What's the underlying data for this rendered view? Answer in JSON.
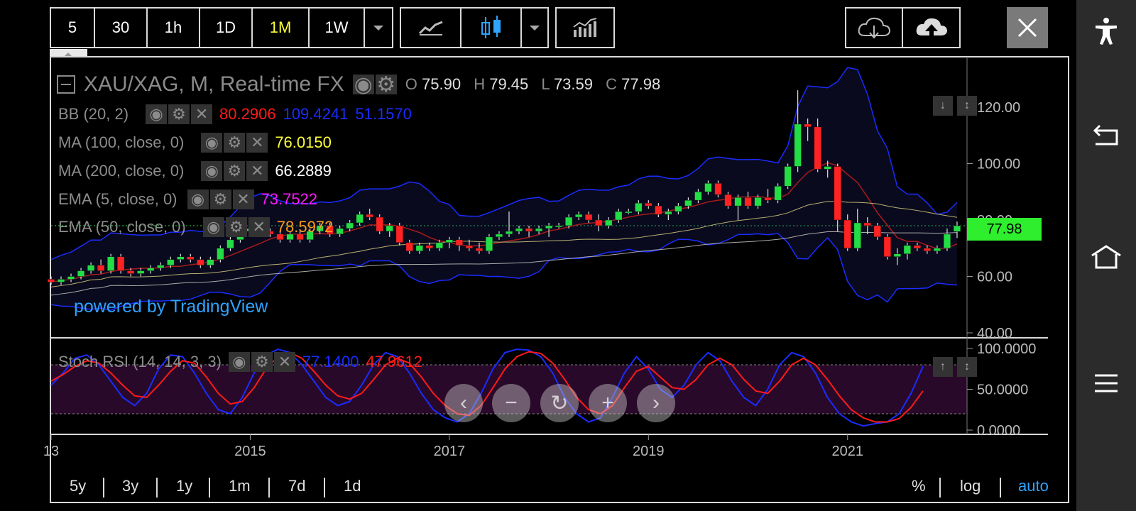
{
  "toolbar": {
    "intervals": [
      "5",
      "30",
      "1h",
      "1D",
      "1M",
      "1W"
    ],
    "active_interval": "1M"
  },
  "chart_header": {
    "title": "XAU/XAG, M, Real-time FX",
    "ohlc": {
      "o_label": "O",
      "o": "75.90",
      "h_label": "H",
      "h": "79.45",
      "l_label": "L",
      "l": "73.59",
      "c_label": "C",
      "c": "77.98"
    }
  },
  "indicators": [
    {
      "label": "BB (20, 2)",
      "values": [
        "80.2906",
        "109.4241",
        "51.1570"
      ],
      "colors": [
        "#ff1a1a",
        "#1a2cff",
        "#1a2cff"
      ]
    },
    {
      "label": "MA (100, close, 0)",
      "values": [
        "76.0150"
      ],
      "colors": [
        "#ffff3a"
      ]
    },
    {
      "label": "MA (200, close, 0)",
      "values": [
        "66.2889"
      ],
      "colors": [
        "#ffffff"
      ]
    },
    {
      "label": "EMA (5, close, 0)",
      "values": [
        "73.7522"
      ],
      "colors": [
        "#ff1aff"
      ]
    },
    {
      "label": "EMA (50, close, 0)",
      "values": [
        "78.5972"
      ],
      "colors": [
        "#ff9d1a"
      ]
    }
  ],
  "stoch": {
    "label": "Stoch RSI (14, 14, 3, 3)",
    "k": "77.1400",
    "d": "47.9612",
    "k_color": "#1a2cff",
    "d_color": "#ff1a1a"
  },
  "watermark": "powered by TradingView",
  "price_tag": "77.98",
  "range_buttons": [
    "5y",
    "3y",
    "1y",
    "1m",
    "7d",
    "1d"
  ],
  "scale_buttons": {
    "percent": "%",
    "log": "log",
    "auto": "auto"
  },
  "colors": {
    "up": "#22dd44",
    "down": "#ff2222",
    "accent": "#2ea3ff",
    "active": "#ffff3a"
  },
  "chart_data": {
    "type": "candlestick",
    "y_axis_ticks": [
      "120.00",
      "100.00",
      "80.00",
      "60.00",
      "40.00"
    ],
    "ylim": [
      40,
      128
    ],
    "x_ticks": [
      "13",
      "2015",
      "2017",
      "2019",
      "2021"
    ],
    "xlim": [
      2013.0,
      2022.2
    ],
    "last_close": 77.98,
    "candles": [
      {
        "t": 2013.0,
        "o": 59,
        "h": 60,
        "l": 57,
        "c": 58
      },
      {
        "t": 2013.1,
        "o": 58,
        "h": 60,
        "l": 57,
        "c": 59
      },
      {
        "t": 2013.2,
        "o": 59,
        "h": 61,
        "l": 58,
        "c": 60
      },
      {
        "t": 2013.3,
        "o": 60,
        "h": 63,
        "l": 59,
        "c": 62
      },
      {
        "t": 2013.4,
        "o": 62,
        "h": 65,
        "l": 61,
        "c": 64
      },
      {
        "t": 2013.5,
        "o": 64,
        "h": 66,
        "l": 61,
        "c": 62
      },
      {
        "t": 2013.6,
        "o": 62,
        "h": 68,
        "l": 61,
        "c": 67
      },
      {
        "t": 2013.7,
        "o": 67,
        "h": 68,
        "l": 61,
        "c": 62
      },
      {
        "t": 2013.8,
        "o": 62,
        "h": 63,
        "l": 60,
        "c": 61
      },
      {
        "t": 2013.9,
        "o": 61,
        "h": 63,
        "l": 60,
        "c": 62
      },
      {
        "t": 2014.0,
        "o": 62,
        "h": 64,
        "l": 61,
        "c": 63
      },
      {
        "t": 2014.1,
        "o": 63,
        "h": 65,
        "l": 62,
        "c": 64
      },
      {
        "t": 2014.2,
        "o": 64,
        "h": 67,
        "l": 63,
        "c": 66
      },
      {
        "t": 2014.3,
        "o": 66,
        "h": 68,
        "l": 65,
        "c": 67
      },
      {
        "t": 2014.4,
        "o": 67,
        "h": 68,
        "l": 65,
        "c": 66
      },
      {
        "t": 2014.5,
        "o": 66,
        "h": 67,
        "l": 63,
        "c": 64
      },
      {
        "t": 2014.6,
        "o": 64,
        "h": 67,
        "l": 63,
        "c": 66
      },
      {
        "t": 2014.7,
        "o": 66,
        "h": 71,
        "l": 65,
        "c": 70
      },
      {
        "t": 2014.8,
        "o": 70,
        "h": 74,
        "l": 69,
        "c": 73
      },
      {
        "t": 2014.9,
        "o": 73,
        "h": 77,
        "l": 72,
        "c": 76
      },
      {
        "t": 2015.0,
        "o": 76,
        "h": 78,
        "l": 75,
        "c": 77
      },
      {
        "t": 2015.1,
        "o": 77,
        "h": 78,
        "l": 75,
        "c": 76
      },
      {
        "t": 2015.2,
        "o": 76,
        "h": 77,
        "l": 74,
        "c": 75
      },
      {
        "t": 2015.3,
        "o": 75,
        "h": 76,
        "l": 72,
        "c": 73
      },
      {
        "t": 2015.4,
        "o": 73,
        "h": 76,
        "l": 72,
        "c": 75
      },
      {
        "t": 2015.5,
        "o": 75,
        "h": 76,
        "l": 72,
        "c": 73
      },
      {
        "t": 2015.6,
        "o": 73,
        "h": 77,
        "l": 72,
        "c": 76
      },
      {
        "t": 2015.7,
        "o": 76,
        "h": 79,
        "l": 75,
        "c": 78
      },
      {
        "t": 2015.8,
        "o": 78,
        "h": 79,
        "l": 74,
        "c": 75
      },
      {
        "t": 2015.9,
        "o": 75,
        "h": 78,
        "l": 74,
        "c": 77
      },
      {
        "t": 2016.0,
        "o": 77,
        "h": 80,
        "l": 76,
        "c": 79
      },
      {
        "t": 2016.1,
        "o": 79,
        "h": 83,
        "l": 78,
        "c": 82
      },
      {
        "t": 2016.2,
        "o": 82,
        "h": 84,
        "l": 80,
        "c": 81
      },
      {
        "t": 2016.3,
        "o": 81,
        "h": 82,
        "l": 75,
        "c": 76
      },
      {
        "t": 2016.4,
        "o": 76,
        "h": 79,
        "l": 74,
        "c": 78
      },
      {
        "t": 2016.5,
        "o": 78,
        "h": 79,
        "l": 71,
        "c": 72
      },
      {
        "t": 2016.6,
        "o": 72,
        "h": 73,
        "l": 68,
        "c": 69
      },
      {
        "t": 2016.7,
        "o": 69,
        "h": 72,
        "l": 68,
        "c": 71
      },
      {
        "t": 2016.8,
        "o": 71,
        "h": 72,
        "l": 69,
        "c": 70
      },
      {
        "t": 2016.9,
        "o": 70,
        "h": 73,
        "l": 69,
        "c": 72
      },
      {
        "t": 2017.0,
        "o": 72,
        "h": 74,
        "l": 70,
        "c": 73
      },
      {
        "t": 2017.1,
        "o": 73,
        "h": 74,
        "l": 69,
        "c": 71
      },
      {
        "t": 2017.2,
        "o": 71,
        "h": 73,
        "l": 69,
        "c": 70
      },
      {
        "t": 2017.3,
        "o": 70,
        "h": 72,
        "l": 68,
        "c": 69
      },
      {
        "t": 2017.4,
        "o": 69,
        "h": 75,
        "l": 68,
        "c": 74
      },
      {
        "t": 2017.5,
        "o": 74,
        "h": 76,
        "l": 73,
        "c": 75
      },
      {
        "t": 2017.6,
        "o": 75,
        "h": 83,
        "l": 74,
        "c": 76
      },
      {
        "t": 2017.7,
        "o": 76,
        "h": 78,
        "l": 75,
        "c": 77
      },
      {
        "t": 2017.8,
        "o": 77,
        "h": 78,
        "l": 74,
        "c": 76
      },
      {
        "t": 2017.9,
        "o": 76,
        "h": 78,
        "l": 75,
        "c": 77
      },
      {
        "t": 2018.0,
        "o": 77,
        "h": 79,
        "l": 74,
        "c": 78
      },
      {
        "t": 2018.1,
        "o": 78,
        "h": 79,
        "l": 77,
        "c": 78
      },
      {
        "t": 2018.2,
        "o": 78,
        "h": 82,
        "l": 77,
        "c": 81
      },
      {
        "t": 2018.3,
        "o": 81,
        "h": 83,
        "l": 80,
        "c": 82
      },
      {
        "t": 2018.4,
        "o": 82,
        "h": 83,
        "l": 79,
        "c": 80
      },
      {
        "t": 2018.5,
        "o": 80,
        "h": 82,
        "l": 76,
        "c": 78
      },
      {
        "t": 2018.6,
        "o": 78,
        "h": 81,
        "l": 77,
        "c": 80
      },
      {
        "t": 2018.7,
        "o": 80,
        "h": 84,
        "l": 79,
        "c": 83
      },
      {
        "t": 2018.8,
        "o": 83,
        "h": 84,
        "l": 82,
        "c": 83
      },
      {
        "t": 2018.9,
        "o": 83,
        "h": 87,
        "l": 82,
        "c": 86
      },
      {
        "t": 2019.0,
        "o": 86,
        "h": 87,
        "l": 84,
        "c": 85
      },
      {
        "t": 2019.1,
        "o": 85,
        "h": 86,
        "l": 81,
        "c": 82
      },
      {
        "t": 2019.2,
        "o": 82,
        "h": 84,
        "l": 80,
        "c": 83
      },
      {
        "t": 2019.3,
        "o": 83,
        "h": 86,
        "l": 82,
        "c": 85
      },
      {
        "t": 2019.4,
        "o": 85,
        "h": 88,
        "l": 84,
        "c": 87
      },
      {
        "t": 2019.5,
        "o": 87,
        "h": 91,
        "l": 86,
        "c": 90
      },
      {
        "t": 2019.6,
        "o": 90,
        "h": 94,
        "l": 89,
        "c": 93
      },
      {
        "t": 2019.7,
        "o": 93,
        "h": 94,
        "l": 88,
        "c": 89
      },
      {
        "t": 2019.8,
        "o": 89,
        "h": 90,
        "l": 84,
        "c": 85
      },
      {
        "t": 2019.9,
        "o": 85,
        "h": 89,
        "l": 80,
        "c": 88
      },
      {
        "t": 2020.0,
        "o": 88,
        "h": 90,
        "l": 84,
        "c": 85
      },
      {
        "t": 2020.1,
        "o": 85,
        "h": 89,
        "l": 84,
        "c": 88
      },
      {
        "t": 2020.2,
        "o": 88,
        "h": 91,
        "l": 86,
        "c": 87
      },
      {
        "t": 2020.3,
        "o": 87,
        "h": 93,
        "l": 86,
        "c": 92
      },
      {
        "t": 2020.4,
        "o": 92,
        "h": 100,
        "l": 91,
        "c": 99
      },
      {
        "t": 2020.5,
        "o": 99,
        "h": 126,
        "l": 97,
        "c": 114
      },
      {
        "t": 2020.6,
        "o": 114,
        "h": 116,
        "l": 108,
        "c": 113
      },
      {
        "t": 2020.7,
        "o": 113,
        "h": 116,
        "l": 97,
        "c": 98
      },
      {
        "t": 2020.8,
        "o": 98,
        "h": 101,
        "l": 95,
        "c": 99
      },
      {
        "t": 2020.9,
        "o": 99,
        "h": 100,
        "l": 76,
        "c": 80
      },
      {
        "t": 2021.0,
        "o": 80,
        "h": 82,
        "l": 69,
        "c": 70
      },
      {
        "t": 2021.1,
        "o": 70,
        "h": 84,
        "l": 69,
        "c": 79
      },
      {
        "t": 2021.2,
        "o": 79,
        "h": 81,
        "l": 75,
        "c": 78
      },
      {
        "t": 2021.3,
        "o": 78,
        "h": 79,
        "l": 73,
        "c": 74
      },
      {
        "t": 2021.4,
        "o": 74,
        "h": 75,
        "l": 66,
        "c": 67
      },
      {
        "t": 2021.5,
        "o": 67,
        "h": 70,
        "l": 64,
        "c": 68
      },
      {
        "t": 2021.6,
        "o": 68,
        "h": 72,
        "l": 66,
        "c": 71
      },
      {
        "t": 2021.7,
        "o": 71,
        "h": 72,
        "l": 69,
        "c": 70
      },
      {
        "t": 2021.8,
        "o": 70,
        "h": 71,
        "l": 68,
        "c": 69
      },
      {
        "t": 2021.9,
        "o": 69,
        "h": 71,
        "l": 68,
        "c": 70
      },
      {
        "t": 2022.0,
        "o": 70,
        "h": 77,
        "l": 69,
        "c": 75
      },
      {
        "t": 2022.1,
        "o": 75.9,
        "h": 79.45,
        "l": 73.59,
        "c": 77.98
      }
    ],
    "stoch_ylim": [
      0,
      100
    ],
    "stoch_ticks": [
      "100.0000",
      "50.0000",
      "0.0000"
    ],
    "stoch_k": [
      55,
      70,
      88,
      92,
      80,
      60,
      40,
      30,
      45,
      75,
      92,
      90,
      70,
      45,
      25,
      20,
      40,
      70,
      92,
      99,
      95,
      80,
      60,
      40,
      30,
      35,
      55,
      80,
      95,
      90,
      70,
      45,
      25,
      15,
      10,
      20,
      45,
      75,
      95,
      99,
      98,
      90,
      70,
      40,
      20,
      10,
      15,
      40,
      70,
      90,
      75,
      50,
      40,
      55,
      80,
      95,
      85,
      60,
      40,
      30,
      50,
      80,
      95,
      90,
      70,
      40,
      20,
      10,
      5,
      8,
      10,
      20,
      45,
      78
    ],
    "stoch_d": [
      60,
      68,
      78,
      85,
      82,
      70,
      55,
      42,
      40,
      55,
      72,
      85,
      82,
      65,
      45,
      32,
      35,
      52,
      75,
      90,
      95,
      88,
      72,
      55,
      42,
      38,
      45,
      62,
      80,
      88,
      82,
      65,
      45,
      30,
      20,
      18,
      30,
      52,
      75,
      90,
      96,
      94,
      82,
      62,
      40,
      25,
      20,
      30,
      52,
      72,
      78,
      65,
      52,
      50,
      62,
      80,
      88,
      80,
      62,
      48,
      45,
      60,
      80,
      88,
      80,
      62,
      42,
      25,
      15,
      10,
      10,
      14,
      28,
      48
    ]
  }
}
